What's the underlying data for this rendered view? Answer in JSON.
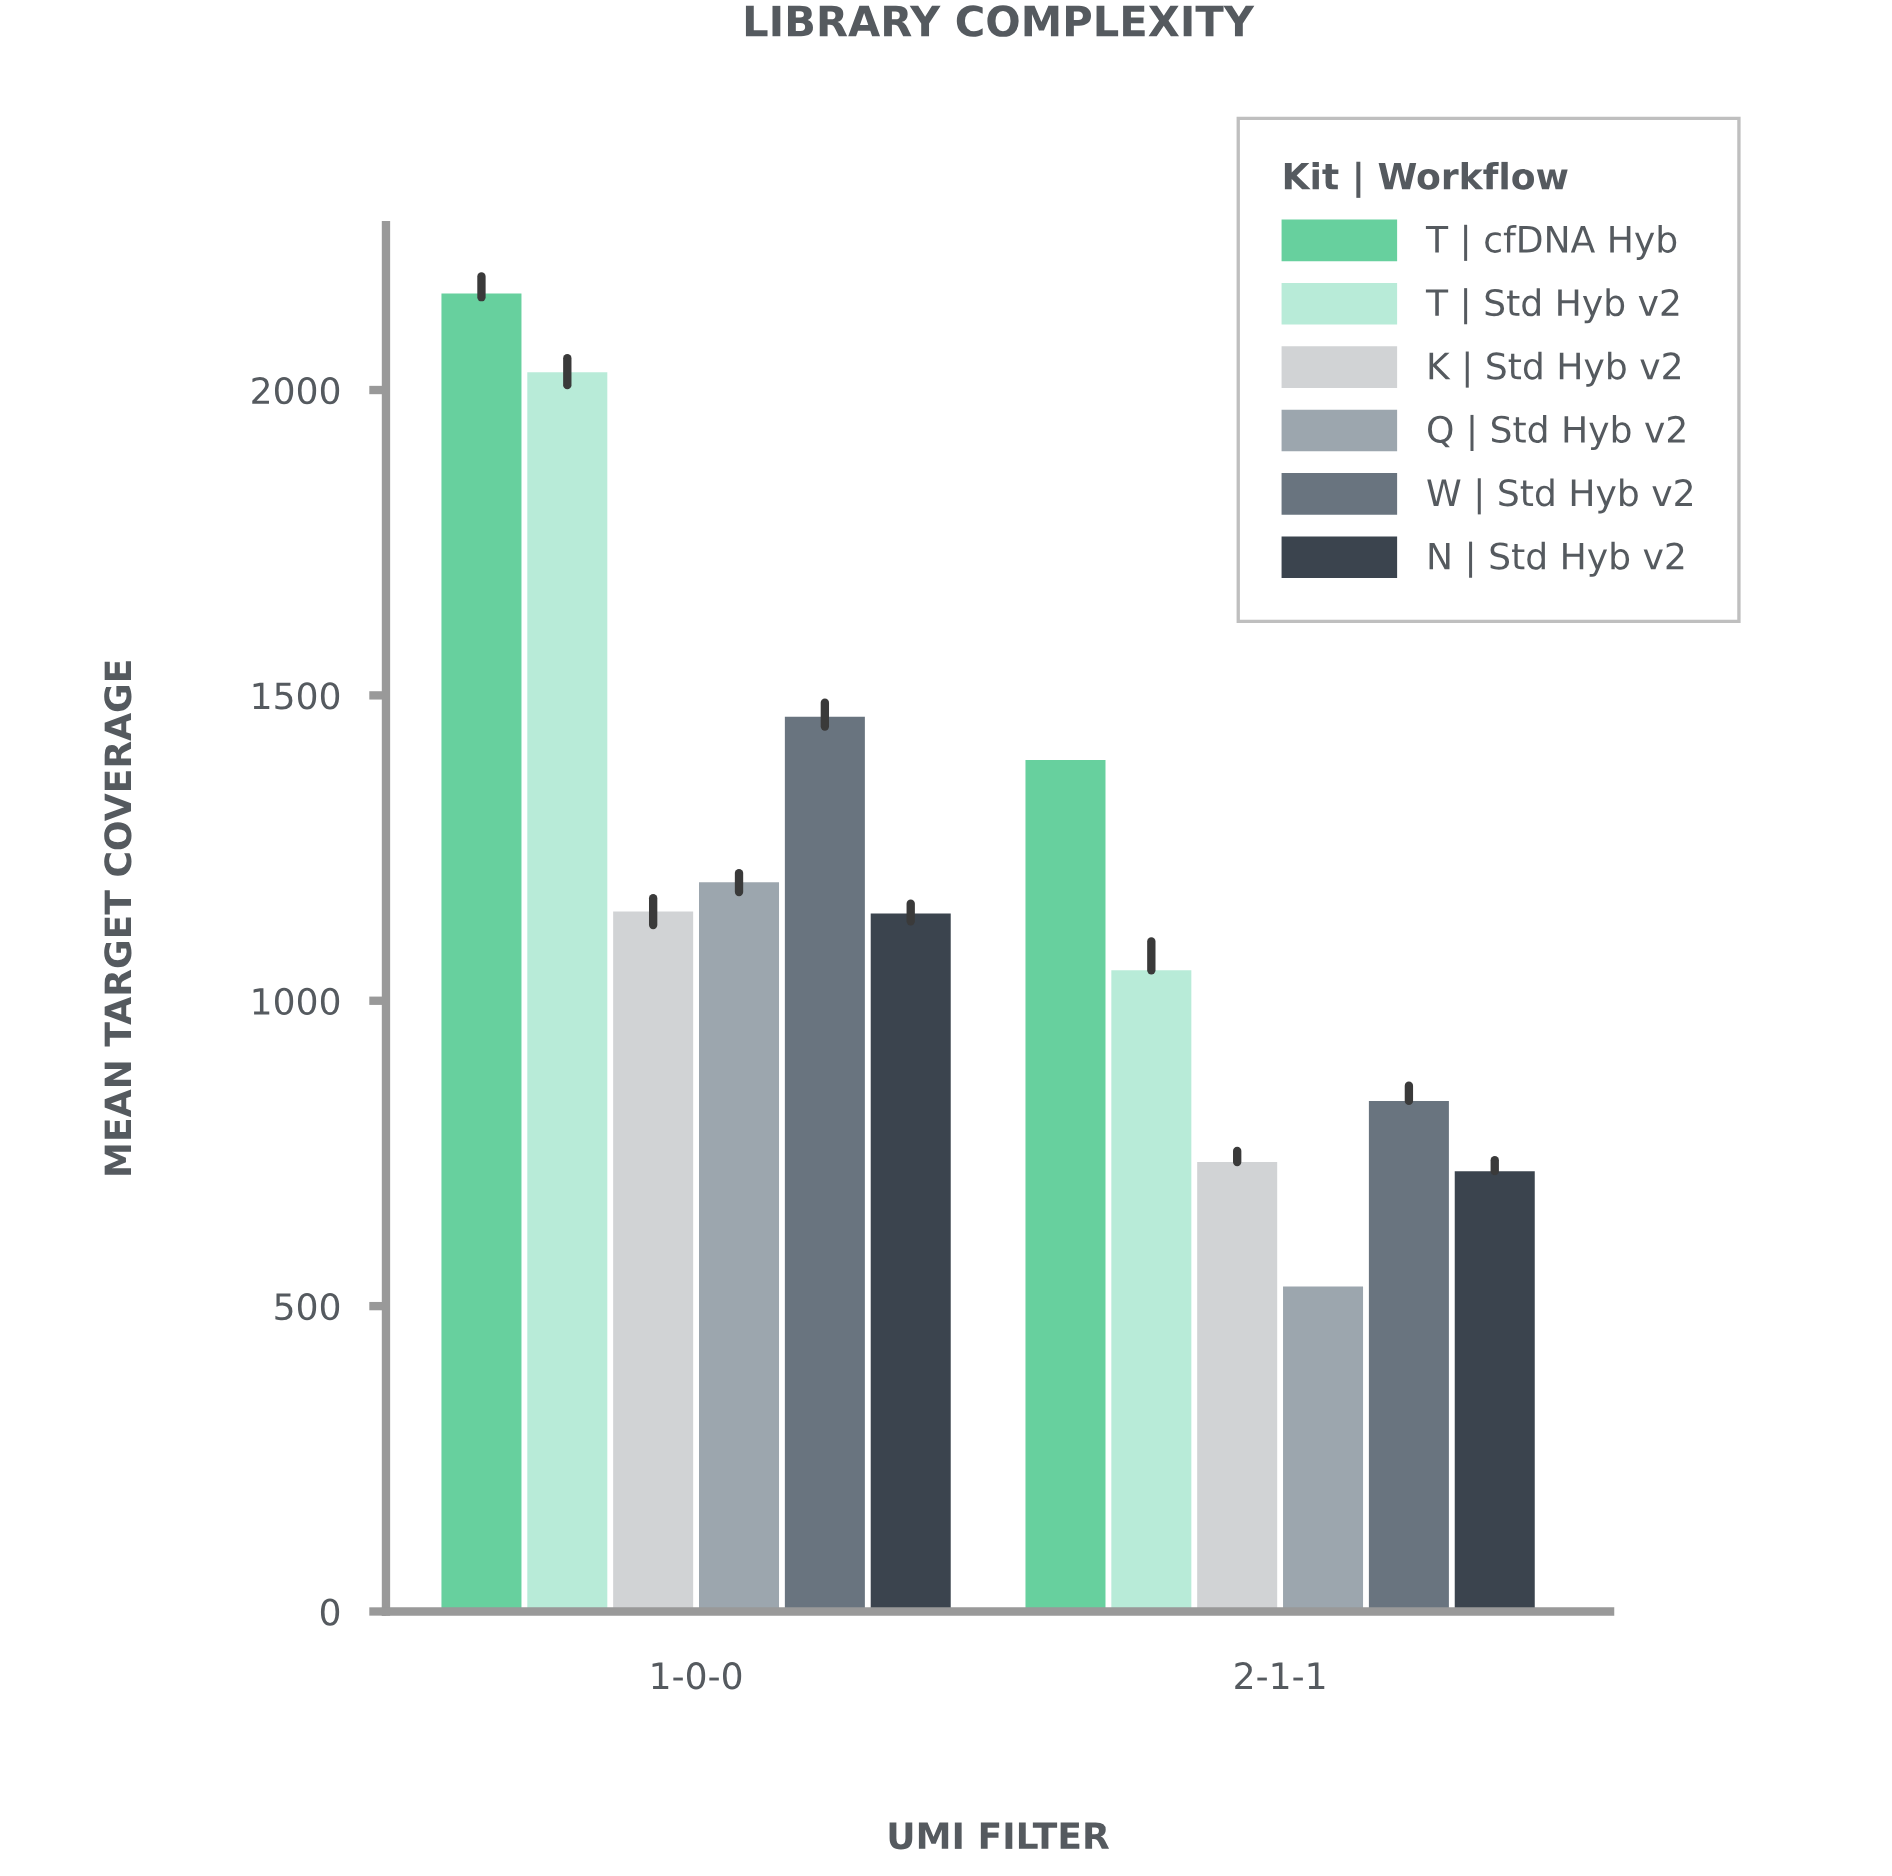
{
  "chart_data": {
    "type": "bar",
    "title": "LIBRARY COMPLEXITY",
    "xlabel": "UMI FILTER",
    "ylabel": "MEAN TARGET COVERAGE",
    "legend_title": "Kit | Workflow",
    "categories": [
      "1-0-0",
      "2-1-1"
    ],
    "series": [
      {
        "name": "T | cfDNA Hyb",
        "color": "#67d09e",
        "values": [
          2158,
          1394
        ],
        "errors": [
          [
            2152,
            2186
          ],
          null
        ]
      },
      {
        "name": "T | Std Hyb v2",
        "color": "#b8ebd8",
        "values": [
          2029,
          1050
        ],
        "errors": [
          [
            2008,
            2052
          ],
          [
            1050,
            1097
          ]
        ]
      },
      {
        "name": "K | Std Hyb v2",
        "color": "#d1d3d5",
        "values": [
          1146,
          736
        ],
        "errors": [
          [
            1124,
            1168
          ],
          [
            736,
            754
          ]
        ]
      },
      {
        "name": "Q | Std Hyb v2",
        "color": "#9ca6ae",
        "values": [
          1194,
          532
        ],
        "errors": [
          [
            1178,
            1209
          ],
          null
        ]
      },
      {
        "name": "W | Std Hyb v2",
        "color": "#69747f",
        "values": [
          1465,
          836
        ],
        "errors": [
          [
            1449,
            1488
          ],
          [
            836,
            861
          ]
        ]
      },
      {
        "name": "N | Std Hyb v2",
        "color": "#3b444e",
        "values": [
          1143,
          721
        ],
        "errors": [
          [
            1130,
            1159
          ],
          [
            721,
            739
          ]
        ]
      }
    ],
    "ylim": [
      0,
      2270
    ],
    "yticks": [
      0,
      500,
      1000,
      1500,
      2000
    ],
    "grid": false,
    "legend": "top right"
  }
}
